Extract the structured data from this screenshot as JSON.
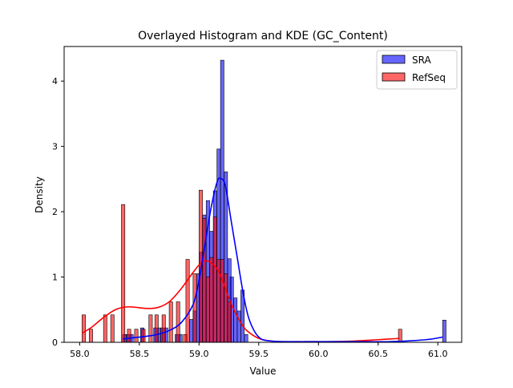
{
  "chart_data": {
    "type": "bar",
    "title": "Overlayed Histogram and KDE (GC_Content)",
    "xlabel": "Value",
    "ylabel": "Density",
    "xlim": [
      57.87,
      61.2
    ],
    "ylim": [
      0,
      4.53
    ],
    "xticks": [
      58.0,
      58.5,
      59.0,
      59.5,
      60.0,
      60.5,
      61.0
    ],
    "xtick_labels": [
      "58.0",
      "58.5",
      "59.0",
      "59.5",
      "60.0",
      "60.5",
      "61.0"
    ],
    "yticks": [
      0,
      1,
      2,
      3,
      4
    ],
    "ytick_labels": [
      "0",
      "1",
      "2",
      "3",
      "4"
    ],
    "legend_position": "top-right",
    "grid": false,
    "series": [
      {
        "name": "SRA",
        "color": "#0000ff",
        "fill_alpha": 0.6,
        "bin_width": 0.0288,
        "bins": [
          {
            "x": 58.36,
            "y": 0.12
          },
          {
            "x": 58.39,
            "y": 0.12
          },
          {
            "x": 58.42,
            "y": 0.12
          },
          {
            "x": 58.51,
            "y": 0.22
          },
          {
            "x": 58.62,
            "y": 0.22
          },
          {
            "x": 58.65,
            "y": 0.22
          },
          {
            "x": 58.68,
            "y": 0.22
          },
          {
            "x": 58.71,
            "y": 0.22
          },
          {
            "x": 58.8,
            "y": 0.12
          },
          {
            "x": 58.83,
            "y": 0.12
          },
          {
            "x": 58.92,
            "y": 0.35
          },
          {
            "x": 58.95,
            "y": 0.48
          },
          {
            "x": 58.98,
            "y": 1.05
          },
          {
            "x": 59.0,
            "y": 1.38
          },
          {
            "x": 59.03,
            "y": 1.95
          },
          {
            "x": 59.06,
            "y": 2.17
          },
          {
            "x": 59.09,
            "y": 1.7
          },
          {
            "x": 59.12,
            "y": 2.32
          },
          {
            "x": 59.15,
            "y": 2.96
          },
          {
            "x": 59.18,
            "y": 4.32
          },
          {
            "x": 59.21,
            "y": 2.61
          },
          {
            "x": 59.24,
            "y": 1.28
          },
          {
            "x": 59.26,
            "y": 1.0
          },
          {
            "x": 59.29,
            "y": 0.68
          },
          {
            "x": 59.32,
            "y": 0.48
          },
          {
            "x": 59.35,
            "y": 0.8
          },
          {
            "x": 59.38,
            "y": 0.12
          },
          {
            "x": 61.04,
            "y": 0.34
          }
        ]
      },
      {
        "name": "RefSeq",
        "color": "#ff0000",
        "fill_alpha": 0.6,
        "bin_width": 0.0288,
        "bins": [
          {
            "x": 58.02,
            "y": 0.42
          },
          {
            "x": 58.08,
            "y": 0.2
          },
          {
            "x": 58.2,
            "y": 0.42
          },
          {
            "x": 58.26,
            "y": 0.42
          },
          {
            "x": 58.35,
            "y": 2.11
          },
          {
            "x": 58.4,
            "y": 0.2
          },
          {
            "x": 58.46,
            "y": 0.2
          },
          {
            "x": 58.52,
            "y": 0.2
          },
          {
            "x": 58.58,
            "y": 0.42
          },
          {
            "x": 58.63,
            "y": 0.42
          },
          {
            "x": 58.69,
            "y": 0.42
          },
          {
            "x": 58.75,
            "y": 0.62
          },
          {
            "x": 58.81,
            "y": 0.62
          },
          {
            "x": 58.87,
            "y": 0.12
          },
          {
            "x": 58.89,
            "y": 1.27
          },
          {
            "x": 58.95,
            "y": 1.05
          },
          {
            "x": 59.0,
            "y": 2.33
          },
          {
            "x": 59.03,
            "y": 1.9
          },
          {
            "x": 59.06,
            "y": 1.0
          },
          {
            "x": 59.09,
            "y": 1.3
          },
          {
            "x": 59.12,
            "y": 1.92
          },
          {
            "x": 59.15,
            "y": 1.27
          },
          {
            "x": 59.18,
            "y": 1.27
          },
          {
            "x": 59.21,
            "y": 1.05
          },
          {
            "x": 59.24,
            "y": 0.62
          },
          {
            "x": 60.67,
            "y": 0.2
          }
        ],
        "kde": {
          "x": [
            58.02,
            58.1,
            58.2,
            58.3,
            58.38,
            58.45,
            58.55,
            58.65,
            58.75,
            58.85,
            58.95,
            59.02,
            59.08,
            59.15,
            59.2,
            59.25,
            59.3,
            59.35,
            59.4,
            59.5,
            59.6,
            59.7,
            59.9,
            60.1,
            60.3,
            60.5,
            60.68
          ],
          "y": [
            0.14,
            0.23,
            0.38,
            0.5,
            0.54,
            0.54,
            0.52,
            0.53,
            0.62,
            0.82,
            1.07,
            1.22,
            1.24,
            1.13,
            0.93,
            0.68,
            0.47,
            0.3,
            0.18,
            0.06,
            0.02,
            0.01,
            0.01,
            0.01,
            0.02,
            0.04,
            0.06
          ]
        }
      }
    ],
    "sra_kde": {
      "x": [
        58.36,
        58.45,
        58.55,
        58.65,
        58.75,
        58.85,
        58.95,
        59.0,
        59.05,
        59.1,
        59.15,
        59.18,
        59.22,
        59.27,
        59.32,
        59.37,
        59.42,
        59.5,
        59.6,
        59.8,
        60.0,
        60.3,
        60.6,
        60.9,
        61.04
      ],
      "y": [
        0.05,
        0.07,
        0.09,
        0.12,
        0.18,
        0.3,
        0.58,
        0.95,
        1.5,
        2.05,
        2.45,
        2.51,
        2.4,
        1.85,
        1.3,
        0.75,
        0.35,
        0.08,
        0.02,
        0.01,
        0.01,
        0.01,
        0.01,
        0.04,
        0.08
      ]
    }
  }
}
